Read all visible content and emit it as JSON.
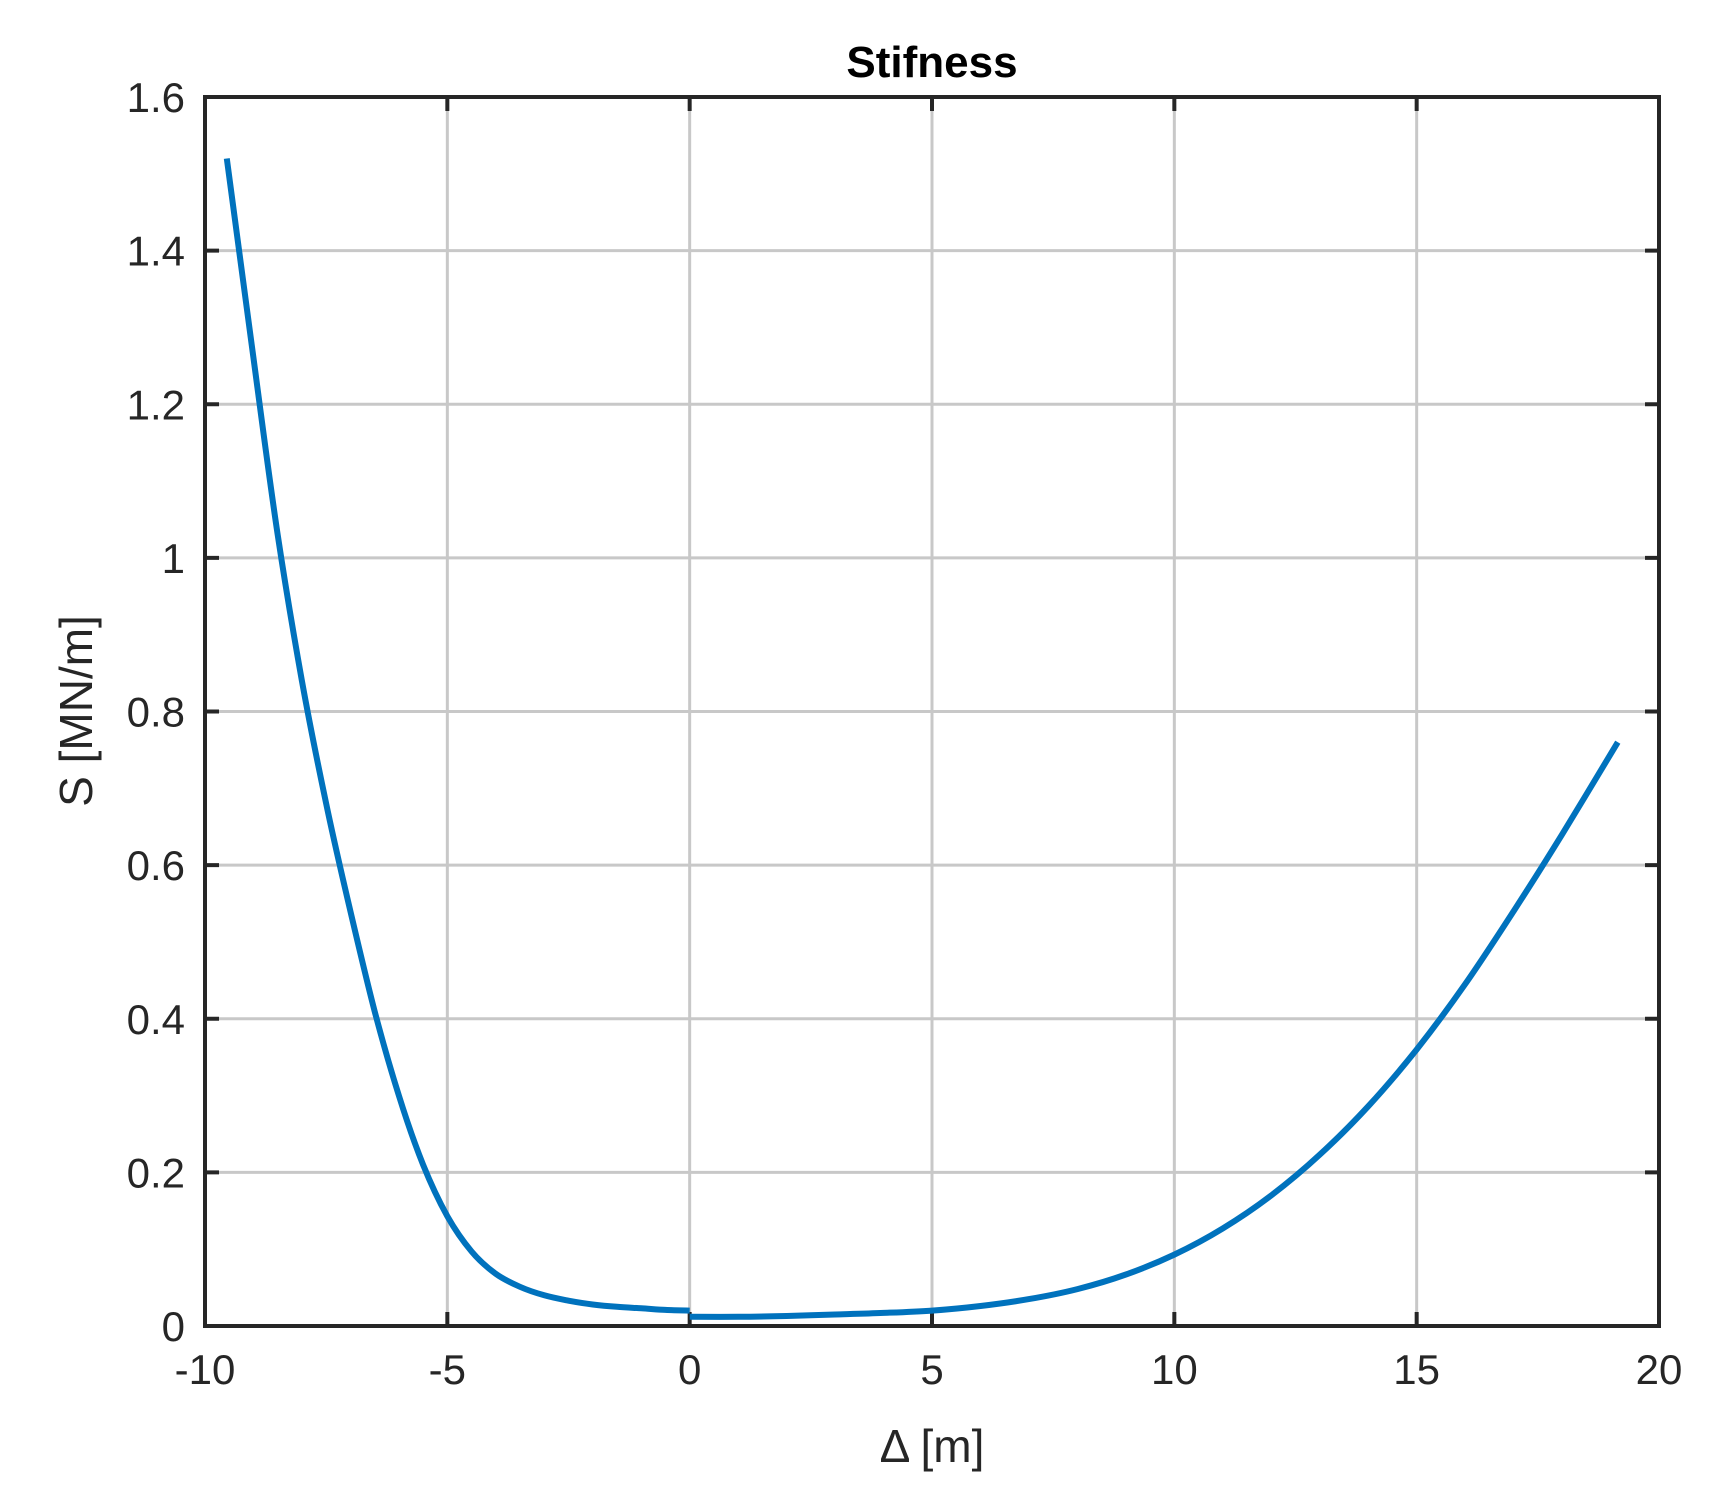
{
  "chart_data": {
    "type": "line",
    "title": "Stifness",
    "xlabel": "Δ [m]",
    "ylabel": "S [MN/m]",
    "xlim": [
      -10,
      20
    ],
    "ylim": [
      0,
      1.6
    ],
    "xticks": [
      "-10",
      "-5",
      "0",
      "5",
      "10",
      "15",
      "20"
    ],
    "yticks": [
      "0",
      "0.2",
      "0.4",
      "0.6",
      "0.8",
      "1",
      "1.2",
      "1.4",
      "1.6"
    ],
    "grid": true,
    "colors": {
      "line": "#0072BD",
      "axes": "#262626",
      "grid": "#c8c8c8"
    },
    "series": [
      {
        "x": [
          -9.55,
          -9.0,
          -8.5,
          -8.0,
          -7.5,
          -7.0,
          -6.5,
          -6.0,
          -5.5,
          -5.0,
          -4.5,
          -4.0,
          -3.5,
          -3.0,
          -2.5,
          -2.0,
          -1.5,
          -1.0,
          -0.5,
          0.0
        ],
        "y": [
          1.52,
          1.26,
          1.03,
          0.84,
          0.68,
          0.54,
          0.41,
          0.3,
          0.21,
          0.143,
          0.097,
          0.068,
          0.051,
          0.04,
          0.033,
          0.028,
          0.025,
          0.023,
          0.021,
          0.02
        ]
      },
      {
        "x": [
          0.0,
          1,
          2,
          3,
          4,
          5,
          6,
          7,
          8,
          9,
          10,
          11,
          12,
          13,
          14,
          15,
          16,
          17,
          18,
          19.15
        ],
        "y": [
          0.012,
          0.012,
          0.013,
          0.015,
          0.017,
          0.02,
          0.026,
          0.035,
          0.048,
          0.067,
          0.093,
          0.127,
          0.17,
          0.223,
          0.286,
          0.36,
          0.445,
          0.54,
          0.64,
          0.76
        ]
      }
    ]
  }
}
